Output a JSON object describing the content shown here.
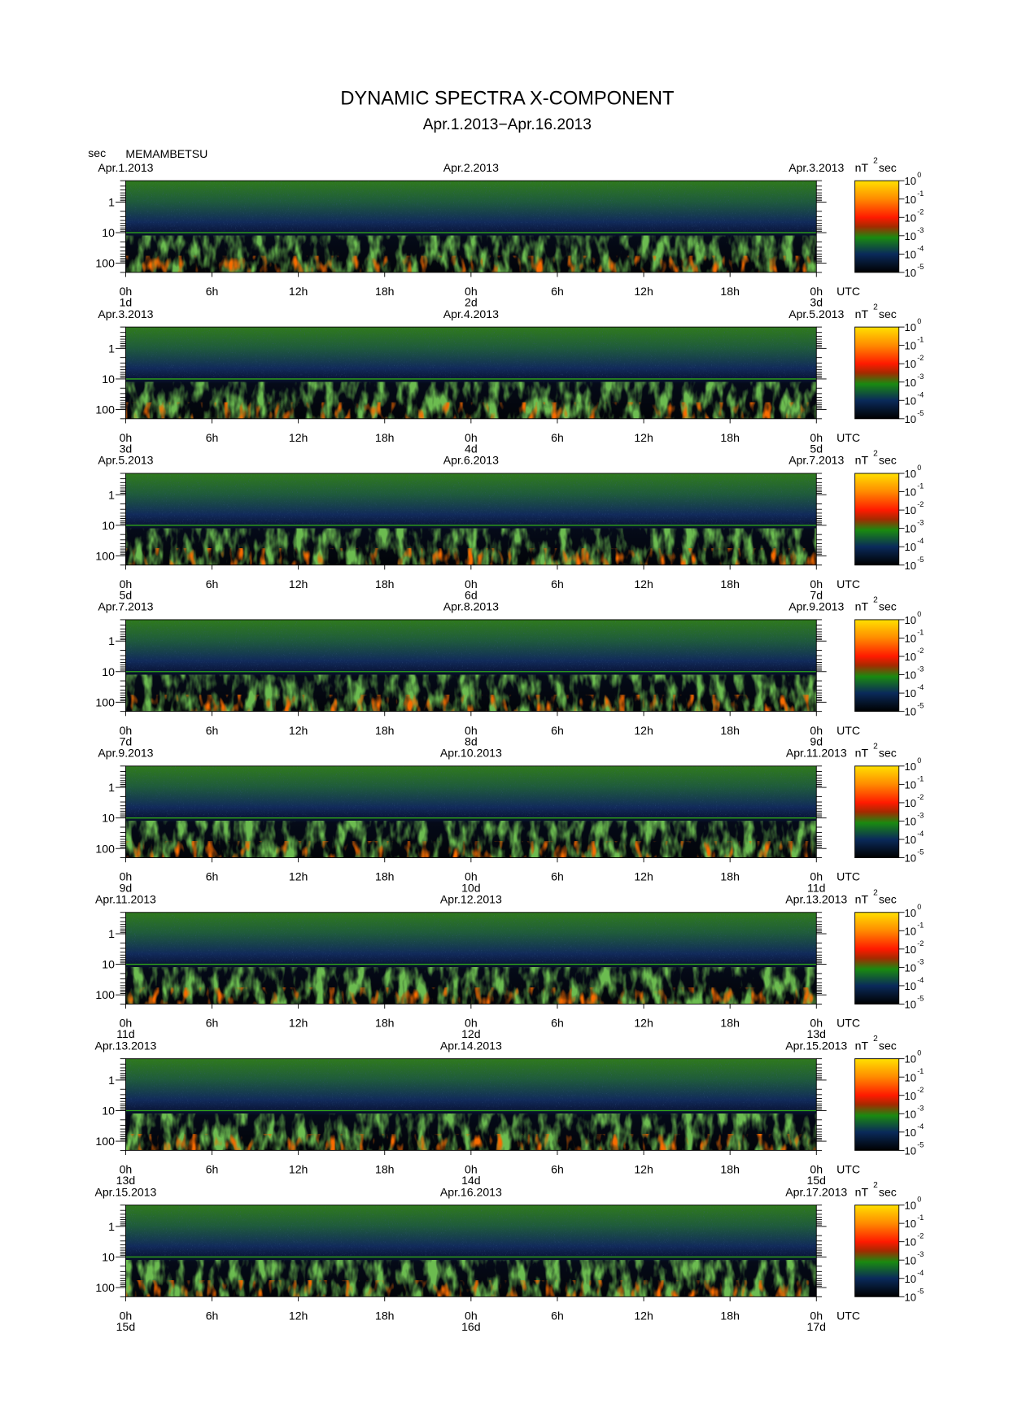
{
  "title": "DYNAMIC SPECTRA X-COMPONENT",
  "subtitle": "Apr.1.2013−Apr.16.2013",
  "y_unit": "sec",
  "station": "MEMAMBETSU",
  "time_zone": "UTC",
  "axes": {
    "xlim": [
      0,
      48
    ],
    "xticks": [
      {
        "value": 0,
        "label": "0h"
      },
      {
        "value": 6,
        "label": "6h"
      },
      {
        "value": 12,
        "label": "12h"
      },
      {
        "value": 18,
        "label": "18h"
      },
      {
        "value": 24,
        "label": "0h"
      },
      {
        "value": 30,
        "label": "6h"
      },
      {
        "value": 36,
        "label": "12h"
      },
      {
        "value": 42,
        "label": "18h"
      },
      {
        "value": 48,
        "label": "0h"
      }
    ],
    "ylim": [
      0.2,
      200
    ],
    "yticks": [
      1,
      10,
      100
    ],
    "log_y": true
  },
  "colorbar": {
    "unit": "nT",
    "unit_power": "2",
    "unit_suffix": "sec",
    "base": "10",
    "exponents": [
      0,
      -1,
      -2,
      -3,
      -4,
      -5
    ]
  },
  "panels": [
    {
      "dates": [
        "Apr.1.2013",
        "Apr.2.2013",
        "Apr.3.2013"
      ],
      "days": [
        "1d",
        "2d",
        "3d"
      ]
    },
    {
      "dates": [
        "Apr.3.2013",
        "Apr.4.2013",
        "Apr.5.2013"
      ],
      "days": [
        "3d",
        "4d",
        "5d"
      ]
    },
    {
      "dates": [
        "Apr.5.2013",
        "Apr.6.2013",
        "Apr.7.2013"
      ],
      "days": [
        "5d",
        "6d",
        "7d"
      ]
    },
    {
      "dates": [
        "Apr.7.2013",
        "Apr.8.2013",
        "Apr.9.2013"
      ],
      "days": [
        "7d",
        "8d",
        "9d"
      ]
    },
    {
      "dates": [
        "Apr.9.2013",
        "Apr.10.2013",
        "Apr.11.2013"
      ],
      "days": [
        "9d",
        "10d",
        "11d"
      ]
    },
    {
      "dates": [
        "Apr.11.2013",
        "Apr.12.2013",
        "Apr.13.2013"
      ],
      "days": [
        "11d",
        "12d",
        "13d"
      ]
    },
    {
      "dates": [
        "Apr.13.2013",
        "Apr.14.2013",
        "Apr.15.2013"
      ],
      "days": [
        "13d",
        "14d",
        "15d"
      ]
    },
    {
      "dates": [
        "Apr.15.2013",
        "Apr.16.2013",
        "Apr.17.2013"
      ],
      "days": [
        "15d",
        "16d",
        "17d"
      ]
    }
  ]
}
